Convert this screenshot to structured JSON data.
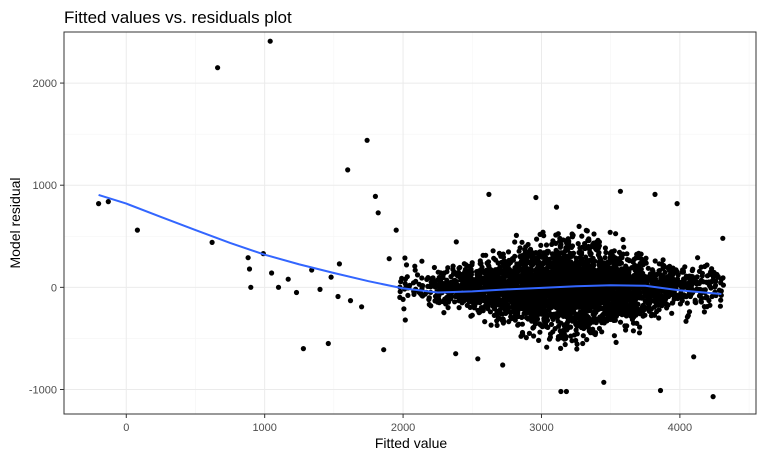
{
  "colors": {
    "background": "#ffffff",
    "panel_border": "#333333",
    "grid_major": "#ebebeb",
    "grid_minor": "#f5f5f5",
    "points": "#000000",
    "smooth_line": "#3366ff",
    "tick_text": "#4d4d4d"
  },
  "chart_data": {
    "type": "scatter",
    "title": "Fitted values vs. residuals plot",
    "xlabel": "Fitted value",
    "ylabel": "Model residual",
    "xlim": [
      -450,
      4550
    ],
    "ylim": [
      -1240,
      2500
    ],
    "x_ticks": [
      0,
      1000,
      2000,
      3000,
      4000
    ],
    "x_tick_labels": [
      "0",
      "1000",
      "2000",
      "3000",
      "4000"
    ],
    "y_ticks": [
      -1000,
      0,
      1000,
      2000
    ],
    "y_tick_labels": [
      "-1000",
      "0",
      "1000",
      "2000"
    ],
    "grid": true,
    "legend": "none",
    "outlier_points": [
      {
        "x": -200,
        "y": 820
      },
      {
        "x": -130,
        "y": 840
      },
      {
        "x": 80,
        "y": 560
      },
      {
        "x": 620,
        "y": 440
      },
      {
        "x": 660,
        "y": 2150
      },
      {
        "x": 1040,
        "y": 2410
      },
      {
        "x": 880,
        "y": 290
      },
      {
        "x": 890,
        "y": 180
      },
      {
        "x": 900,
        "y": 0
      },
      {
        "x": 990,
        "y": 330
      },
      {
        "x": 1050,
        "y": 140
      },
      {
        "x": 1100,
        "y": 0
      },
      {
        "x": 1170,
        "y": 80
      },
      {
        "x": 1230,
        "y": -50
      },
      {
        "x": 1280,
        "y": -600
      },
      {
        "x": 1340,
        "y": 170
      },
      {
        "x": 1460,
        "y": -550
      },
      {
        "x": 1480,
        "y": 100
      },
      {
        "x": 1540,
        "y": 230
      },
      {
        "x": 1600,
        "y": 1150
      },
      {
        "x": 1740,
        "y": 1440
      },
      {
        "x": 1800,
        "y": 890
      },
      {
        "x": 1820,
        "y": 730
      },
      {
        "x": 1860,
        "y": -610
      },
      {
        "x": 1900,
        "y": 280
      },
      {
        "x": 1950,
        "y": 560
      },
      {
        "x": 1620,
        "y": -130
      },
      {
        "x": 1700,
        "y": -190
      },
      {
        "x": 1530,
        "y": -90
      },
      {
        "x": 1400,
        "y": -20
      },
      {
        "x": 2620,
        "y": 910
      },
      {
        "x": 2960,
        "y": 880
      },
      {
        "x": 3140,
        "y": -1020
      },
      {
        "x": 3180,
        "y": -1020
      },
      {
        "x": 3450,
        "y": -930
      },
      {
        "x": 3570,
        "y": 940
      },
      {
        "x": 3820,
        "y": 910
      },
      {
        "x": 3860,
        "y": -1010
      },
      {
        "x": 3980,
        "y": 820
      },
      {
        "x": 4100,
        "y": -680
      },
      {
        "x": 4240,
        "y": -1070
      },
      {
        "x": 4310,
        "y": 480
      },
      {
        "x": 2540,
        "y": -700
      },
      {
        "x": 2720,
        "y": -760
      },
      {
        "x": 2380,
        "y": -650
      }
    ],
    "bulk_cloud": {
      "description_free_params": true,
      "x_range": [
        1950,
        4320
      ],
      "x_center": 3200,
      "x_spread": 470,
      "y_center": 0,
      "y_spread": 230,
      "n_points": 3600,
      "seed": 17
    },
    "smooth_curve": {
      "x": [
        -200,
        0,
        250,
        500,
        750,
        1000,
        1250,
        1500,
        1750,
        2000,
        2250,
        2500,
        2750,
        3000,
        3250,
        3500,
        3750,
        4000,
        4300
      ],
      "y": [
        905,
        820,
        690,
        560,
        435,
        320,
        225,
        140,
        60,
        -10,
        -50,
        -40,
        -20,
        -5,
        10,
        20,
        15,
        -30,
        -65
      ]
    }
  }
}
